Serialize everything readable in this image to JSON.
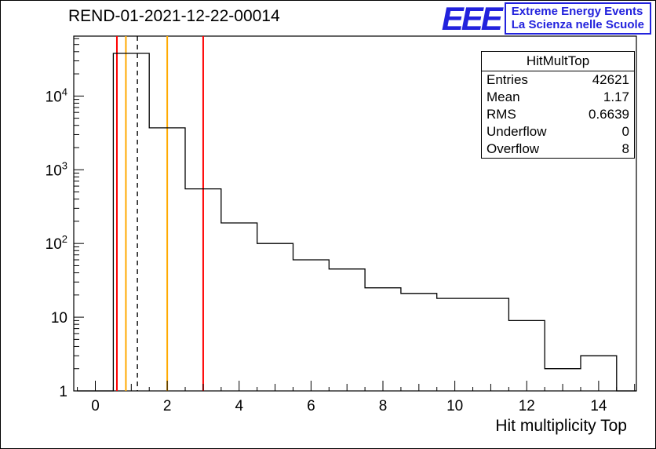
{
  "title": "REND-01-2021-12-22-00014",
  "logo": {
    "eee": "EEE",
    "line1": "Extreme Energy Events",
    "line2": "La Scienza nelle Scuole",
    "color": "#2222dd"
  },
  "stats": {
    "header": "HitMultTop",
    "rows": [
      [
        "Entries",
        "42621"
      ],
      [
        "Mean",
        "1.17"
      ],
      [
        "RMS",
        "0.6639"
      ],
      [
        "Underflow",
        "0"
      ],
      [
        "Overflow",
        "8"
      ]
    ]
  },
  "chart_data": {
    "type": "bar",
    "subtype": "step-histogram",
    "title": "REND-01-2021-12-22-00014",
    "xlabel": "Hit multiplicity Top",
    "ylabel": "",
    "yscale": "log",
    "xlim": [
      -0.6,
      15.05
    ],
    "ylim": [
      1,
      65000
    ],
    "grid": false,
    "legend": "none (stats box top-right)",
    "bin_edges": [
      -0.5,
      0.5,
      1.5,
      2.5,
      3.5,
      4.5,
      5.5,
      6.5,
      7.5,
      8.5,
      9.5,
      10.5,
      11.5,
      12.5,
      13.5,
      14.5,
      15.5
    ],
    "counts": [
      0,
      37870,
      3700,
      550,
      190,
      100,
      60,
      45,
      25,
      21,
      18,
      18,
      9,
      2,
      3,
      0
    ],
    "x_ticks": [
      0,
      2,
      4,
      6,
      8,
      10,
      12,
      14
    ],
    "x_tick_labels": [
      "0",
      "2",
      "4",
      "6",
      "8",
      "10",
      "12",
      "14"
    ],
    "y_ticks": [
      1,
      10,
      100,
      1000,
      10000
    ],
    "y_tick_labels": [
      "1",
      "10",
      "10^2",
      "10^3",
      "10^4"
    ],
    "line_color": "#000000",
    "vlines": [
      {
        "x": 0.6,
        "color": "#ff0000",
        "style": "solid",
        "name": "red-threshold-low"
      },
      {
        "x": 0.85,
        "color": "#ffaa00",
        "style": "solid",
        "name": "orange-threshold-low"
      },
      {
        "x": 1.17,
        "color": "#000000",
        "style": "dashed",
        "name": "mean-line"
      },
      {
        "x": 2.0,
        "color": "#ffaa00",
        "style": "solid",
        "name": "orange-threshold-high"
      },
      {
        "x": 3.0,
        "color": "#ff0000",
        "style": "solid",
        "name": "red-threshold-high"
      }
    ]
  }
}
